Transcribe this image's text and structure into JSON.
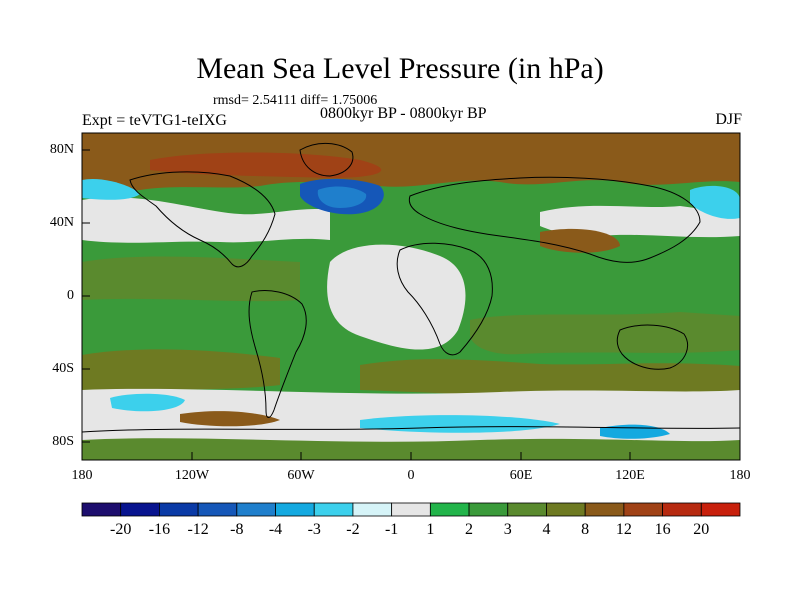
{
  "title": "Mean Sea Level Pressure (in hPa)",
  "stats": "rmsd= 2.54111 diff= 1.75006",
  "experiment": "Expt = teVTG1-teIXG",
  "period": "0800kyr BP - 0800kyr BP",
  "season": "DJF",
  "axes": {
    "y_ticks": [
      "80N",
      "40N",
      "0",
      "40S",
      "80S"
    ],
    "x_ticks": [
      "180",
      "120W",
      "60W",
      "0",
      "60E",
      "120E",
      "180"
    ]
  },
  "colorbar": {
    "labels": [
      "-20",
      "-16",
      "-12",
      "-8",
      "-4",
      "-3",
      "-2",
      "-1",
      "1",
      "2",
      "3",
      "4",
      "8",
      "12",
      "16",
      "20"
    ],
    "colors": [
      "#1d0e6e",
      "#08148f",
      "#0a3aa6",
      "#1557b8",
      "#1f7fcc",
      "#14a9e0",
      "#3cd0ec",
      "#d6f4f8",
      "#e6e6e6",
      "#22b44a",
      "#3a9a3a",
      "#5a8a2e",
      "#6e7a22",
      "#8a5a1a",
      "#a04216",
      "#b72a10",
      "#c8200c"
    ]
  },
  "map_colors": {
    "ocean_neutral": "#e6e6e6",
    "green_2": "#22b44a",
    "green_3": "#3a9a3a",
    "olive_4": "#5a8a2e",
    "olive_8": "#6e7a22",
    "brown_12": "#8a5a1a",
    "brown_16": "#a04216",
    "cyan_m2": "#3cd0ec",
    "cyan_m3": "#14a9e0",
    "blue_m4": "#1f7fcc",
    "blue_m8": "#1557b8"
  }
}
